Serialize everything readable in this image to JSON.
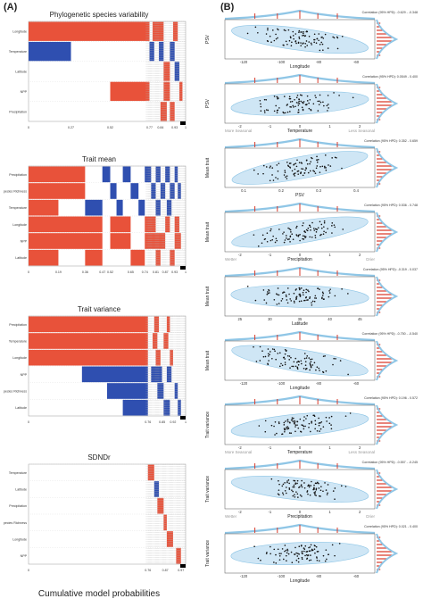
{
  "figure": {
    "panel_a_label": "(A)",
    "panel_b_label": "(B)",
    "footer": "Cumulative model probabilities"
  },
  "colors": {
    "red": "#e8523a",
    "blue": "#2f4fb0",
    "light_blue": "#8fc6e6",
    "dark_blue": "#1e5a9a",
    "hist_red": "#d93a2a"
  },
  "chart_data": [
    {
      "type": "heatmap",
      "title": "Phylogenetic species variability",
      "rows": [
        "Longitude",
        "Temperature",
        "Latitude",
        "NPP",
        "Precipitation"
      ],
      "ticks": [
        "0",
        "0.27",
        "0.52",
        "0.77",
        "0.84",
        "0.93",
        "1"
      ]
    },
    {
      "type": "heatmap",
      "title": "Trait mean",
      "rows": [
        "Precipitation",
        "Species Richness",
        "Temperature",
        "Longitude",
        "NPP",
        "Latitude"
      ],
      "ticks": [
        "0",
        "0.19",
        "0.36",
        "0.47",
        "0.52",
        "0.65",
        "0.74",
        "0.81",
        "0.87",
        "0.93",
        "1"
      ]
    },
    {
      "type": "heatmap",
      "title": "Trait variance",
      "rows": [
        "Precipitation",
        "Temperature",
        "Longitude",
        "NPP",
        "Species Richness",
        "Latitude"
      ],
      "ticks": [
        "0",
        "0.76",
        "0.85",
        "0.92",
        "1"
      ]
    },
    {
      "type": "heatmap",
      "title": "SDNDr",
      "rows": [
        "Temperature",
        "Latitude",
        "Precipitation",
        "Species Richness",
        "Longitude",
        "NPP"
      ],
      "ticks": [
        "0",
        "0.76",
        "0.87",
        "0.97"
      ]
    },
    {
      "type": "scatter",
      "ylabel": "PSV",
      "xlabel": "Longitude",
      "corr": "Correlation (95% HPD): -0.629 - -0.348",
      "xticks": [
        "-120",
        "-100",
        "-80",
        "-60"
      ],
      "left_note": "",
      "right_note": ""
    },
    {
      "type": "scatter",
      "ylabel": "PSV",
      "xlabel": "Temperature",
      "corr": "Correlation (95% HPD): 0.0549 - 0.400",
      "xticks": [
        "-2",
        "-1",
        "0",
        "1",
        "2"
      ],
      "left_note": "More Seasonal",
      "right_note": "Less Seasonal"
    },
    {
      "type": "scatter",
      "ylabel": "Mean trait",
      "xlabel": "PSV",
      "corr": "Correlation (95% HPD): 0.352 - 0.659",
      "xticks": [
        "0.1",
        "0.2",
        "0.3",
        "0.4"
      ],
      "left_note": "",
      "right_note": ""
    },
    {
      "type": "scatter",
      "ylabel": "Mean trait",
      "xlabel": "Precipitation",
      "corr": "Correlation (95% HPD): 0.536 - 0.748",
      "xticks": [
        "-2",
        "-1",
        "0",
        "1",
        "2"
      ],
      "left_note": "Wetter",
      "right_note": "Drier"
    },
    {
      "type": "scatter",
      "ylabel": "Mean trait",
      "xlabel": "Latitude",
      "corr": "Correlation (95% HPD): -0.319 - 0.037",
      "xticks": [
        "25",
        "30",
        "35",
        "40",
        "45"
      ],
      "left_note": "",
      "right_note": ""
    },
    {
      "type": "scatter",
      "ylabel": "Mean trait",
      "xlabel": "Longitude",
      "corr": "Correlation (95% HPD): -0.750 - -0.540",
      "xticks": [
        "-120",
        "-100",
        "-80",
        "-60"
      ],
      "left_note": "",
      "right_note": ""
    },
    {
      "type": "scatter",
      "ylabel": "Trait variance",
      "xlabel": "Temperature",
      "corr": "Correlation (95% HPD): 0.196 - 0.572",
      "xticks": [
        "-2",
        "-1",
        "0",
        "1",
        "2"
      ],
      "left_note": "More Seasonal",
      "right_note": "Less Seasonal"
    },
    {
      "type": "scatter",
      "ylabel": "Trait variance",
      "xlabel": "Precipitation",
      "corr": "Correlation (95% HPD): -0.557 - -0.245",
      "xticks": [
        "-2",
        "-1",
        "0",
        "1",
        "2"
      ],
      "left_note": "Wetter",
      "right_note": "Drier"
    },
    {
      "type": "scatter",
      "ylabel": "Trait variance",
      "xlabel": "Longitude",
      "corr": "Correlation (95% HPD): 0.021 - 0.400",
      "xticks": [
        "-120",
        "-100",
        "-80",
        "-60"
      ],
      "left_note": "",
      "right_note": ""
    }
  ]
}
